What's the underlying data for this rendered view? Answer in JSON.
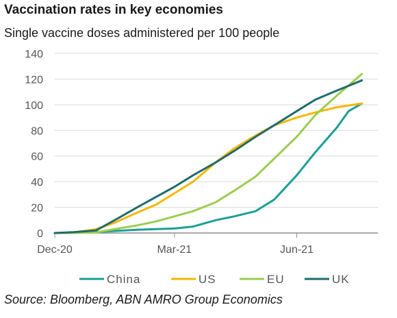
{
  "chart_data": {
    "type": "line",
    "title": "Vaccination rates in key economies",
    "subtitle": "Single vaccine doses administered per 100 people",
    "source": "Source: Bloomberg, ABN AMRO Group Economics",
    "ylim": [
      0,
      140
    ],
    "yticks": [
      "0",
      "20",
      "40",
      "60",
      "80",
      "100",
      "120",
      "140"
    ],
    "xticks": [
      {
        "label": "Dec-20",
        "date": "2020-12-01"
      },
      {
        "label": "Mar-21",
        "date": "2021-03-01"
      },
      {
        "label": "Jun-21",
        "date": "2021-06-01"
      }
    ],
    "x_start": "2020-12-01",
    "x_end": "2021-08-01",
    "grid": "horizontal",
    "legend_position": "bottom",
    "series": [
      {
        "name": "China",
        "color": "#1a9e96",
        "points": [
          [
            "2020-12-01",
            0
          ],
          [
            "2021-01-01",
            0.8
          ],
          [
            "2021-02-01",
            2.5
          ],
          [
            "2021-03-01",
            3.5
          ],
          [
            "2021-03-15",
            5
          ],
          [
            "2021-04-01",
            10
          ],
          [
            "2021-04-15",
            13
          ],
          [
            "2021-05-01",
            17
          ],
          [
            "2021-05-15",
            26
          ],
          [
            "2021-06-01",
            45
          ],
          [
            "2021-06-15",
            63
          ],
          [
            "2021-07-01",
            82
          ],
          [
            "2021-07-10",
            95
          ],
          [
            "2021-07-20",
            101
          ]
        ]
      },
      {
        "name": "US",
        "color": "#f5b700",
        "points": [
          [
            "2020-12-01",
            0
          ],
          [
            "2020-12-15",
            0.3
          ],
          [
            "2021-01-01",
            3
          ],
          [
            "2021-01-15",
            8
          ],
          [
            "2021-02-01",
            16
          ],
          [
            "2021-02-15",
            22
          ],
          [
            "2021-03-01",
            31
          ],
          [
            "2021-03-15",
            40
          ],
          [
            "2021-04-01",
            55
          ],
          [
            "2021-04-15",
            66
          ],
          [
            "2021-05-01",
            76
          ],
          [
            "2021-05-15",
            84
          ],
          [
            "2021-06-01",
            90
          ],
          [
            "2021-06-15",
            94
          ],
          [
            "2021-07-01",
            98
          ],
          [
            "2021-07-20",
            101
          ]
        ]
      },
      {
        "name": "EU",
        "color": "#9acd4f",
        "points": [
          [
            "2020-12-01",
            0
          ],
          [
            "2020-12-15",
            0
          ],
          [
            "2021-01-01",
            0.5
          ],
          [
            "2021-01-15",
            3
          ],
          [
            "2021-02-01",
            6
          ],
          [
            "2021-02-15",
            9
          ],
          [
            "2021-03-01",
            13
          ],
          [
            "2021-03-15",
            17
          ],
          [
            "2021-04-01",
            24
          ],
          [
            "2021-04-15",
            33
          ],
          [
            "2021-05-01",
            44
          ],
          [
            "2021-05-15",
            58
          ],
          [
            "2021-06-01",
            75
          ],
          [
            "2021-06-15",
            92
          ],
          [
            "2021-07-01",
            107
          ],
          [
            "2021-07-20",
            124
          ]
        ]
      },
      {
        "name": "UK",
        "color": "#1f6b6b",
        "points": [
          [
            "2020-12-01",
            0
          ],
          [
            "2020-12-15",
            0.7
          ],
          [
            "2021-01-01",
            2
          ],
          [
            "2021-01-15",
            10
          ],
          [
            "2021-02-01",
            20
          ],
          [
            "2021-02-15",
            28
          ],
          [
            "2021-03-01",
            36
          ],
          [
            "2021-03-15",
            45
          ],
          [
            "2021-04-01",
            55
          ],
          [
            "2021-04-15",
            64
          ],
          [
            "2021-05-01",
            75
          ],
          [
            "2021-05-15",
            84
          ],
          [
            "2021-06-01",
            95
          ],
          [
            "2021-06-15",
            104
          ],
          [
            "2021-07-01",
            111
          ],
          [
            "2021-07-20",
            119
          ]
        ]
      }
    ]
  }
}
